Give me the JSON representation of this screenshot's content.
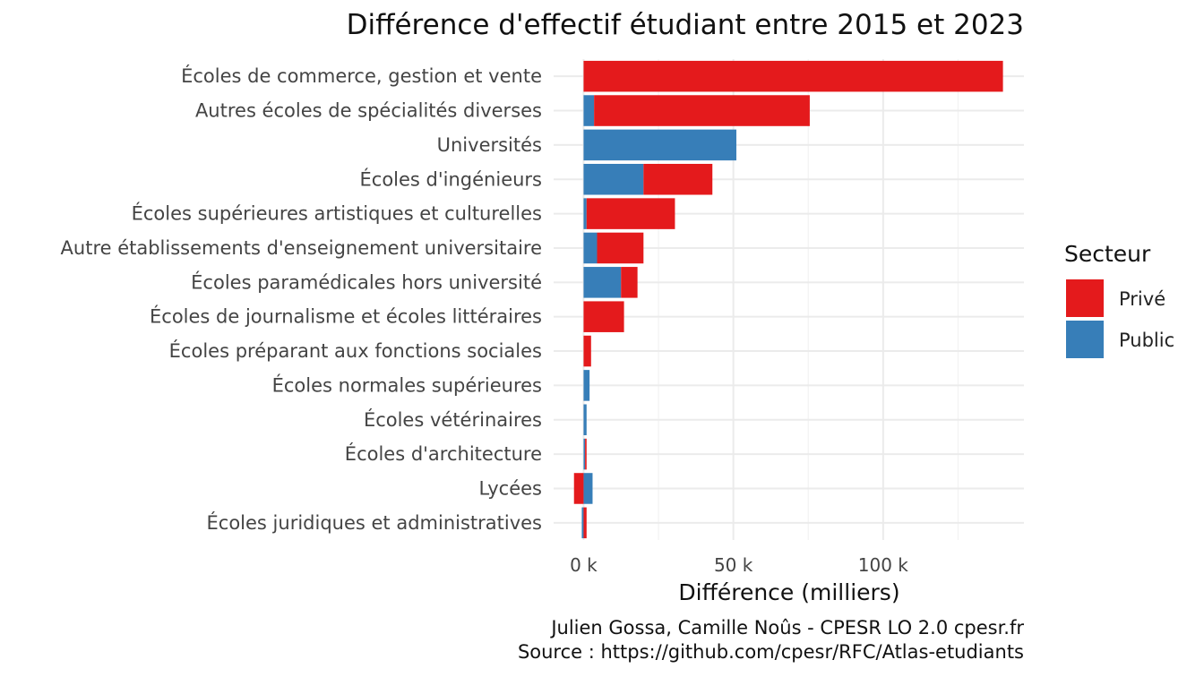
{
  "chart_data": {
    "type": "bar",
    "orientation": "horizontal",
    "stacking": "diverging",
    "title": "Différence d'effectif étudiant entre 2015 et 2023",
    "xlabel": "Différence (milliers)",
    "ylabel": "",
    "xlim": [
      -10000,
      147000
    ],
    "x_ticks": [
      0,
      50000,
      100000
    ],
    "x_tick_labels": [
      "0 k",
      "50 k",
      "100 k"
    ],
    "x_minor_ticks": [
      25000,
      75000,
      125000
    ],
    "grid": true,
    "legend": {
      "title": "Secteur",
      "position": "right"
    },
    "categories": [
      "Écoles de commerce, gestion et vente",
      "Autres écoles de spécialités diverses",
      "Universités",
      "Écoles d'ingénieurs",
      "Écoles supérieures artistiques et culturelles",
      "Autre établissements d'enseignement universitaire",
      "Écoles paramédicales hors université",
      "Écoles de journalisme et écoles littéraires",
      "Écoles préparant aux fonctions sociales",
      "Écoles normales supérieures",
      "Écoles vétérinaires",
      "Écoles d'architecture",
      "Lycées",
      "Écoles juridiques et administratives"
    ],
    "series": [
      {
        "name": "Public",
        "color": "#377eb8",
        "values": [
          0,
          3500,
          51000,
          20000,
          1000,
          4500,
          12500,
          0,
          0,
          2000,
          1000,
          500,
          3000,
          -600
        ]
      },
      {
        "name": "Privé",
        "color": "#e41a1c",
        "values": [
          140000,
          72000,
          0,
          23000,
          29500,
          15500,
          5500,
          13500,
          2500,
          0,
          0,
          500,
          -3200,
          1000
        ]
      }
    ],
    "caption": [
      "Julien Gossa, Camille Noûs - CPESR LO 2.0 cpesr.fr",
      "Source : https://github.com/cpesr/RFC/Atlas-etudiants"
    ]
  }
}
